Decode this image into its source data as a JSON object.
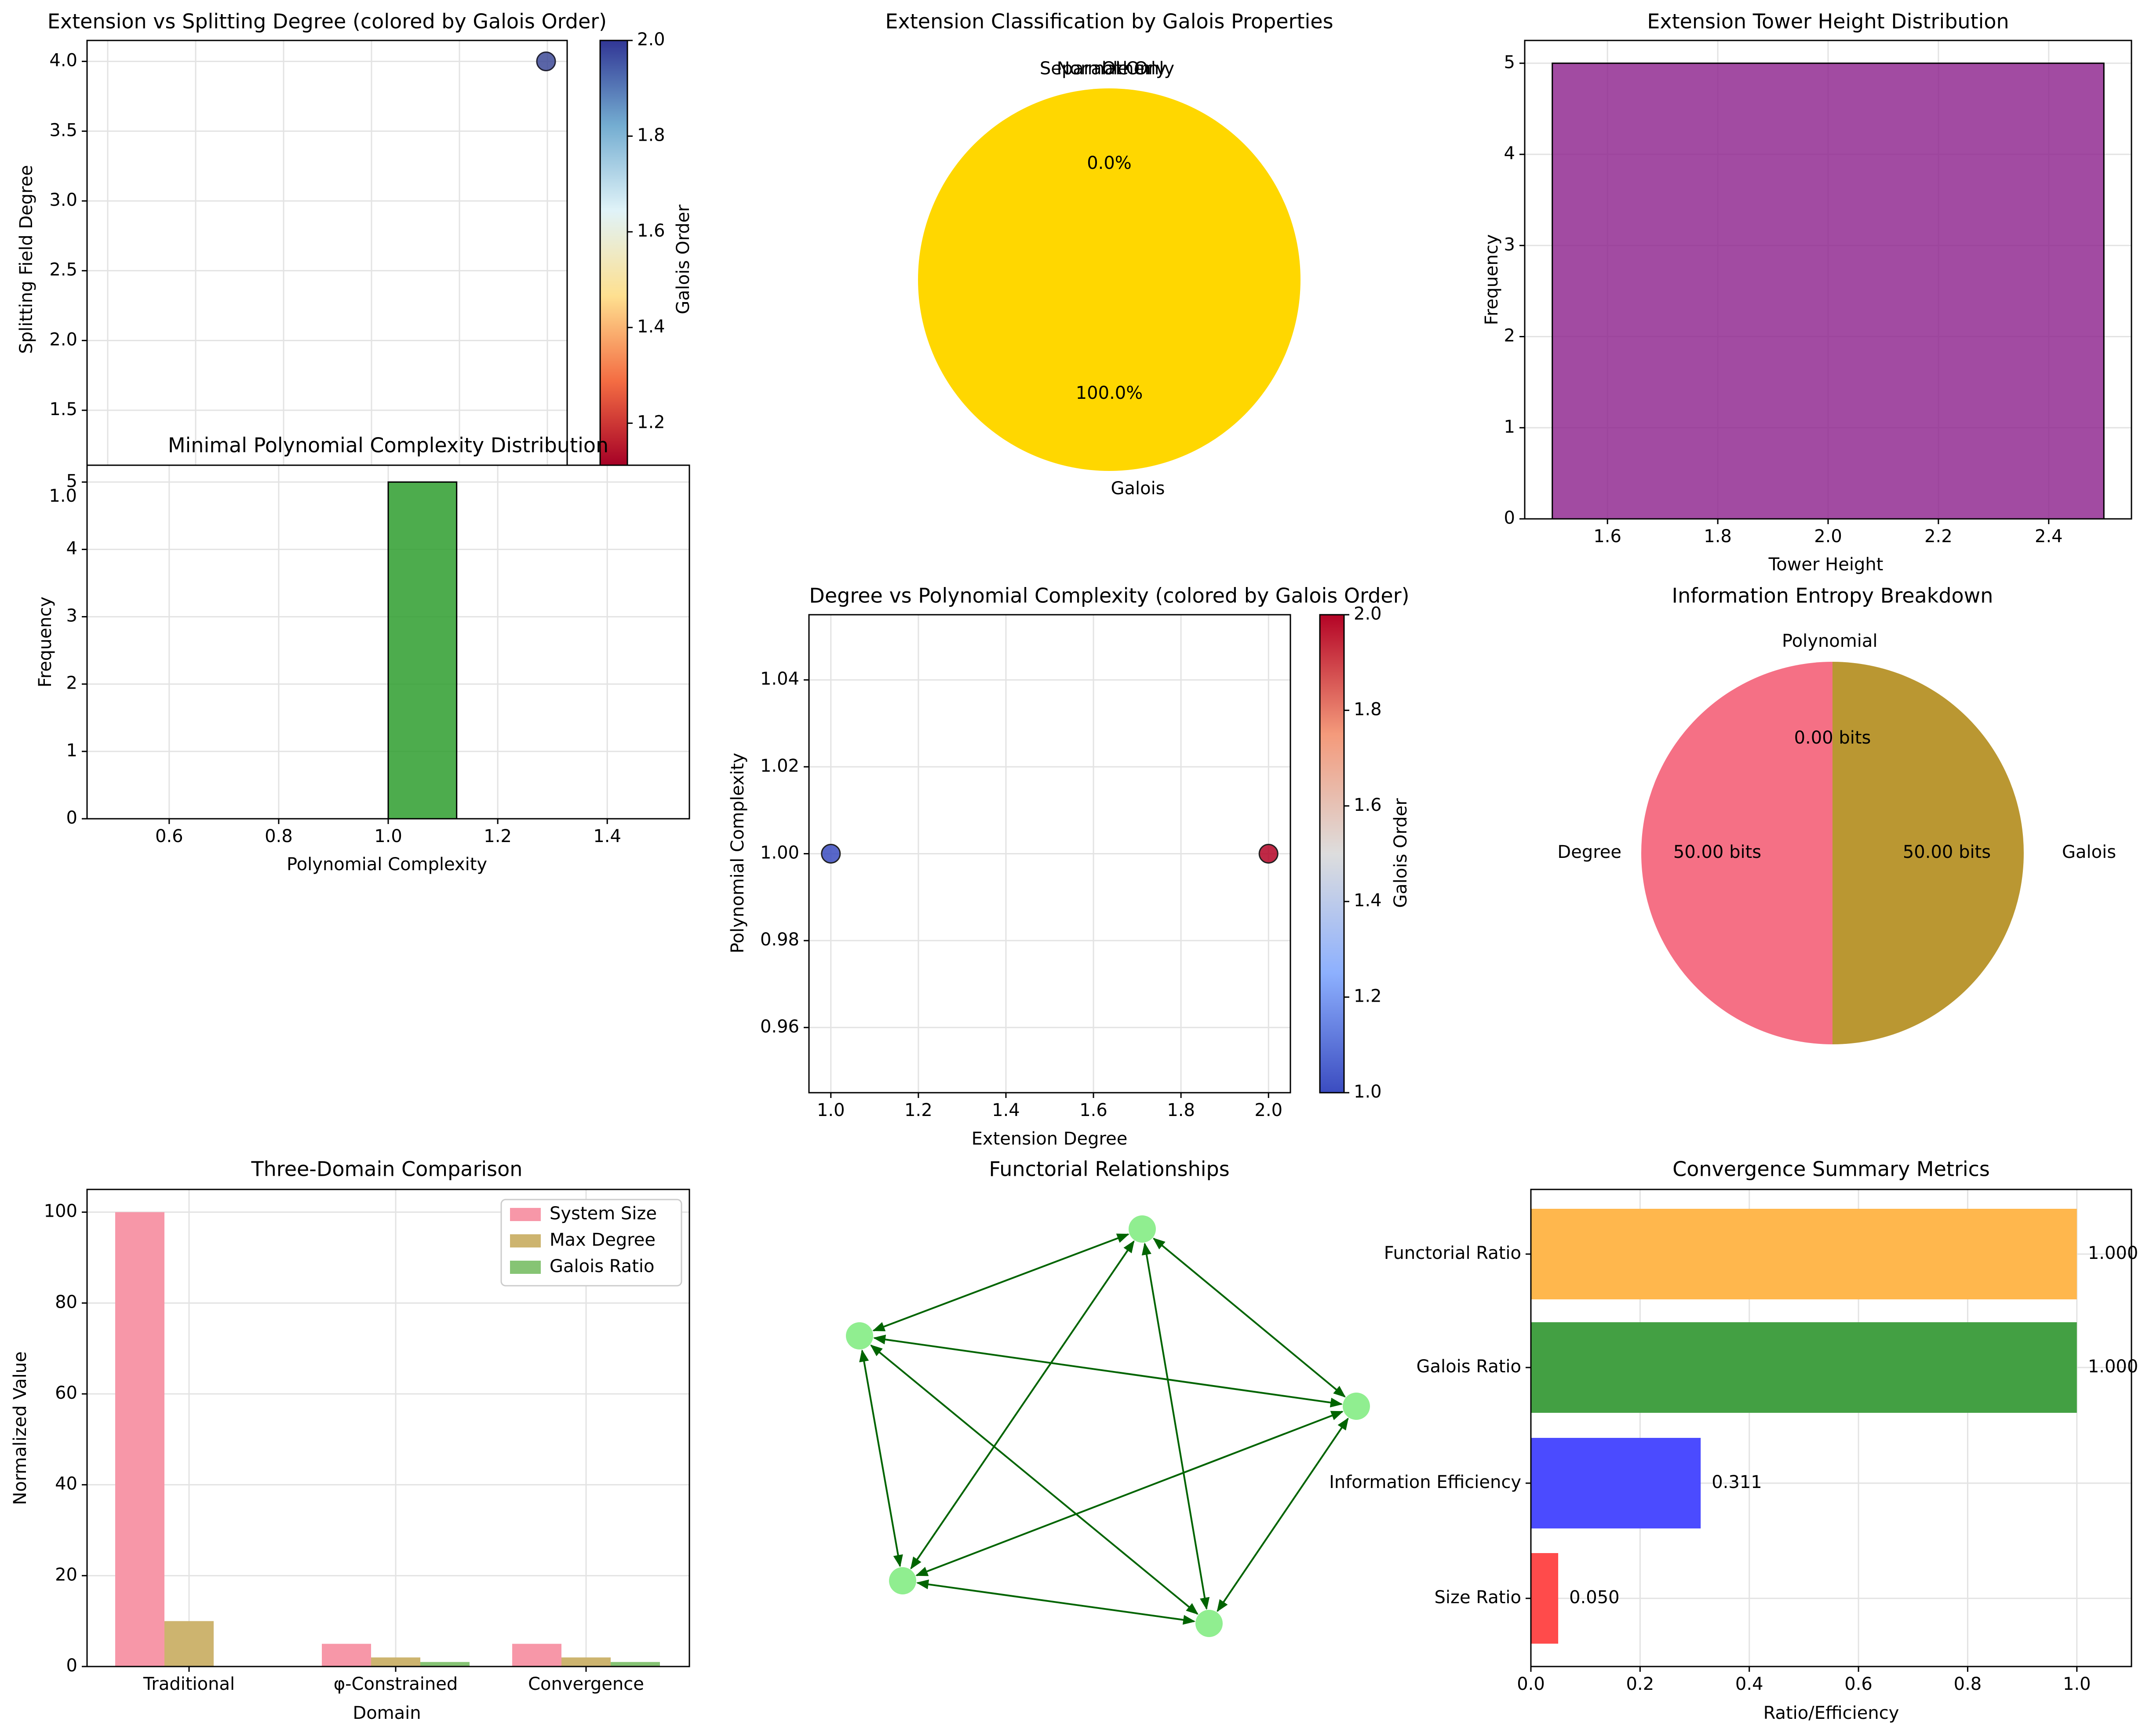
{
  "chart_data": [
    {
      "id": "p1",
      "type": "scatter",
      "title": "Extension vs Splitting Degree (colored by Galois Order)",
      "xlabel": "",
      "ylabel": "Splitting Field Degree",
      "ylim": [
        1.1,
        4.15
      ],
      "yticks": [
        "1.5",
        "2.0",
        "2.5",
        "3.0",
        "3.5",
        "4.0"
      ],
      "x_grid_count": 6,
      "points": [
        {
          "x": 1.0,
          "y": 4.0,
          "galois_order": 2.0
        }
      ],
      "colorbar": {
        "label": "Galois Order",
        "cmap": "RdYlBu",
        "ticks": [
          "1.2",
          "1.4",
          "1.6",
          "1.8",
          "2.0"
        ]
      }
    },
    {
      "id": "p2",
      "type": "pie",
      "title": "Extension Classification by Galois Properties",
      "slices": [
        {
          "label": "Galois",
          "value": 100.0,
          "pct": "100.0%",
          "color": "#FFD700"
        },
        {
          "label": "Separable Only",
          "value": 0,
          "pct": "0.0%"
        },
        {
          "label": "Normal Only",
          "value": 0,
          "pct": "0.0%"
        },
        {
          "label": "Other",
          "value": 0,
          "pct": "0.0%"
        }
      ]
    },
    {
      "id": "p3",
      "type": "bar",
      "title": "Extension Tower Height Distribution",
      "xlabel": "Tower Height",
      "ylabel": "Frequency",
      "xlim": [
        1.45,
        2.55
      ],
      "ylim": [
        0,
        5.25
      ],
      "bins": [
        {
          "x0": 1.5,
          "x1": 2.5,
          "count": 5
        }
      ],
      "xticks": [
        "1.6",
        "1.8",
        "2.0",
        "2.2",
        "2.4"
      ],
      "yticks": [
        "0",
        "1",
        "2",
        "3",
        "4",
        "5"
      ],
      "color": "#8B1E8B"
    },
    {
      "id": "p4",
      "type": "bar",
      "title": "Minimal Polynomial Complexity Distribution",
      "xlabel": "Polynomial Complexity",
      "ylabel": "Frequency",
      "xlim": [
        0.45,
        1.55
      ],
      "ylim": [
        0,
        5.25
      ],
      "bins": [
        {
          "x0": 1.0,
          "x1": 1.125,
          "count": 5
        }
      ],
      "xticks": [
        "0.6",
        "0.8",
        "1.0",
        "1.2",
        "1.4"
      ],
      "yticks": [
        "0",
        "1",
        "2",
        "3",
        "4",
        "5"
      ],
      "overlap_ticks": [
        "1.0"
      ],
      "color": "#2E9E2E"
    },
    {
      "id": "p5",
      "type": "scatter",
      "title": "Degree vs Polynomial Complexity (colored by Galois Order)",
      "xlabel": "Extension Degree",
      "ylabel": "Polynomial Complexity",
      "xlim": [
        0.95,
        2.05
      ],
      "ylim": [
        0.945,
        1.055
      ],
      "xticks": [
        "1.0",
        "1.2",
        "1.4",
        "1.6",
        "1.8",
        "2.0"
      ],
      "yticks": [
        "0.96",
        "0.98",
        "1.00",
        "1.02",
        "1.04"
      ],
      "points": [
        {
          "x": 1.0,
          "y": 1.0,
          "galois_order": 1.0
        },
        {
          "x": 2.0,
          "y": 1.0,
          "galois_order": 2.0
        }
      ],
      "colorbar": {
        "label": "Galois Order",
        "cmap": "coolwarm",
        "ticks": [
          "1.0",
          "1.2",
          "1.4",
          "1.6",
          "1.8",
          "2.0"
        ]
      }
    },
    {
      "id": "p6",
      "type": "pie",
      "title": "Information Entropy Breakdown",
      "slices": [
        {
          "label": "Galois",
          "value": 50.0,
          "text": "50.00 bits",
          "color": "#BA9732"
        },
        {
          "label": "Polynomial",
          "value": 0.0,
          "text": "0.00 bits",
          "color": "#BA9732"
        },
        {
          "label": "Degree",
          "value": 50.0,
          "text": "50.00 bits",
          "color": "#F57085"
        }
      ]
    },
    {
      "id": "p7",
      "type": "bar",
      "title": "Three-Domain Comparison",
      "xlabel": "Domain",
      "ylabel": "Normalized Value",
      "ylim": [
        0,
        105
      ],
      "categories": [
        "Traditional",
        "φ-Constrained",
        "Convergence"
      ],
      "series": [
        {
          "name": "System Size",
          "values": [
            100,
            5,
            5
          ],
          "color": "#F797A8"
        },
        {
          "name": "Max Degree",
          "values": [
            10,
            2,
            2
          ],
          "color": "#CDB46F"
        },
        {
          "name": "Galois Ratio",
          "values": [
            0,
            1,
            1
          ],
          "color": "#86C474"
        }
      ],
      "yticks": [
        "0",
        "20",
        "40",
        "60",
        "80",
        "100"
      ]
    },
    {
      "id": "p8",
      "type": "graph",
      "title": "Functorial Relationships",
      "node_color": "#90EE90",
      "edge_color": "#006400",
      "node_count": 5,
      "edges": "complete, bidirectional"
    },
    {
      "id": "p9",
      "type": "bar",
      "title": "Convergence Summary Metrics",
      "xlabel": "Ratio/Efficiency",
      "ylabel": "",
      "xlim": [
        0,
        1.1
      ],
      "categories": [
        "Functorial Ratio",
        "Galois Ratio",
        "Information Efficiency",
        "Size Ratio"
      ],
      "values": [
        1.0,
        1.0,
        0.311,
        0.05
      ],
      "value_labels": [
        "1.000",
        "1.000",
        "0.311",
        "0.050"
      ],
      "colors": [
        "#FFB74D",
        "#43A043",
        "#4B4BFF",
        "#FF4B4B"
      ],
      "xticks": [
        "0.0",
        "0.2",
        "0.4",
        "0.6",
        "0.8",
        "1.0"
      ]
    }
  ]
}
